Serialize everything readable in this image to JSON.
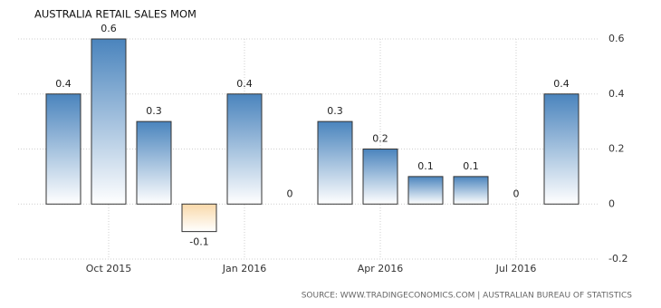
{
  "chart_data": {
    "type": "bar",
    "title": "AUSTRALIA RETAIL SALES MOM",
    "source": "SOURCE: WWW.TRADINGECONOMICS.COM | AUSTRALIAN BUREAU OF STATISTICS",
    "categories": [
      null,
      "Oct 2015",
      null,
      null,
      "Jan 2016",
      null,
      null,
      "Apr 2016",
      null,
      null,
      "Jul 2016",
      null
    ],
    "values": [
      0.4,
      0.6,
      0.3,
      -0.1,
      0.4,
      0,
      0.3,
      0.2,
      0.1,
      0.1,
      0,
      0.4
    ],
    "color": "#4a84bd",
    "negative_color": "#f9d9aa",
    "ylim": [
      -0.2,
      0.6
    ],
    "yticks": [
      -0.2,
      0,
      0.2,
      0.4,
      0.6
    ],
    "grid": true
  }
}
